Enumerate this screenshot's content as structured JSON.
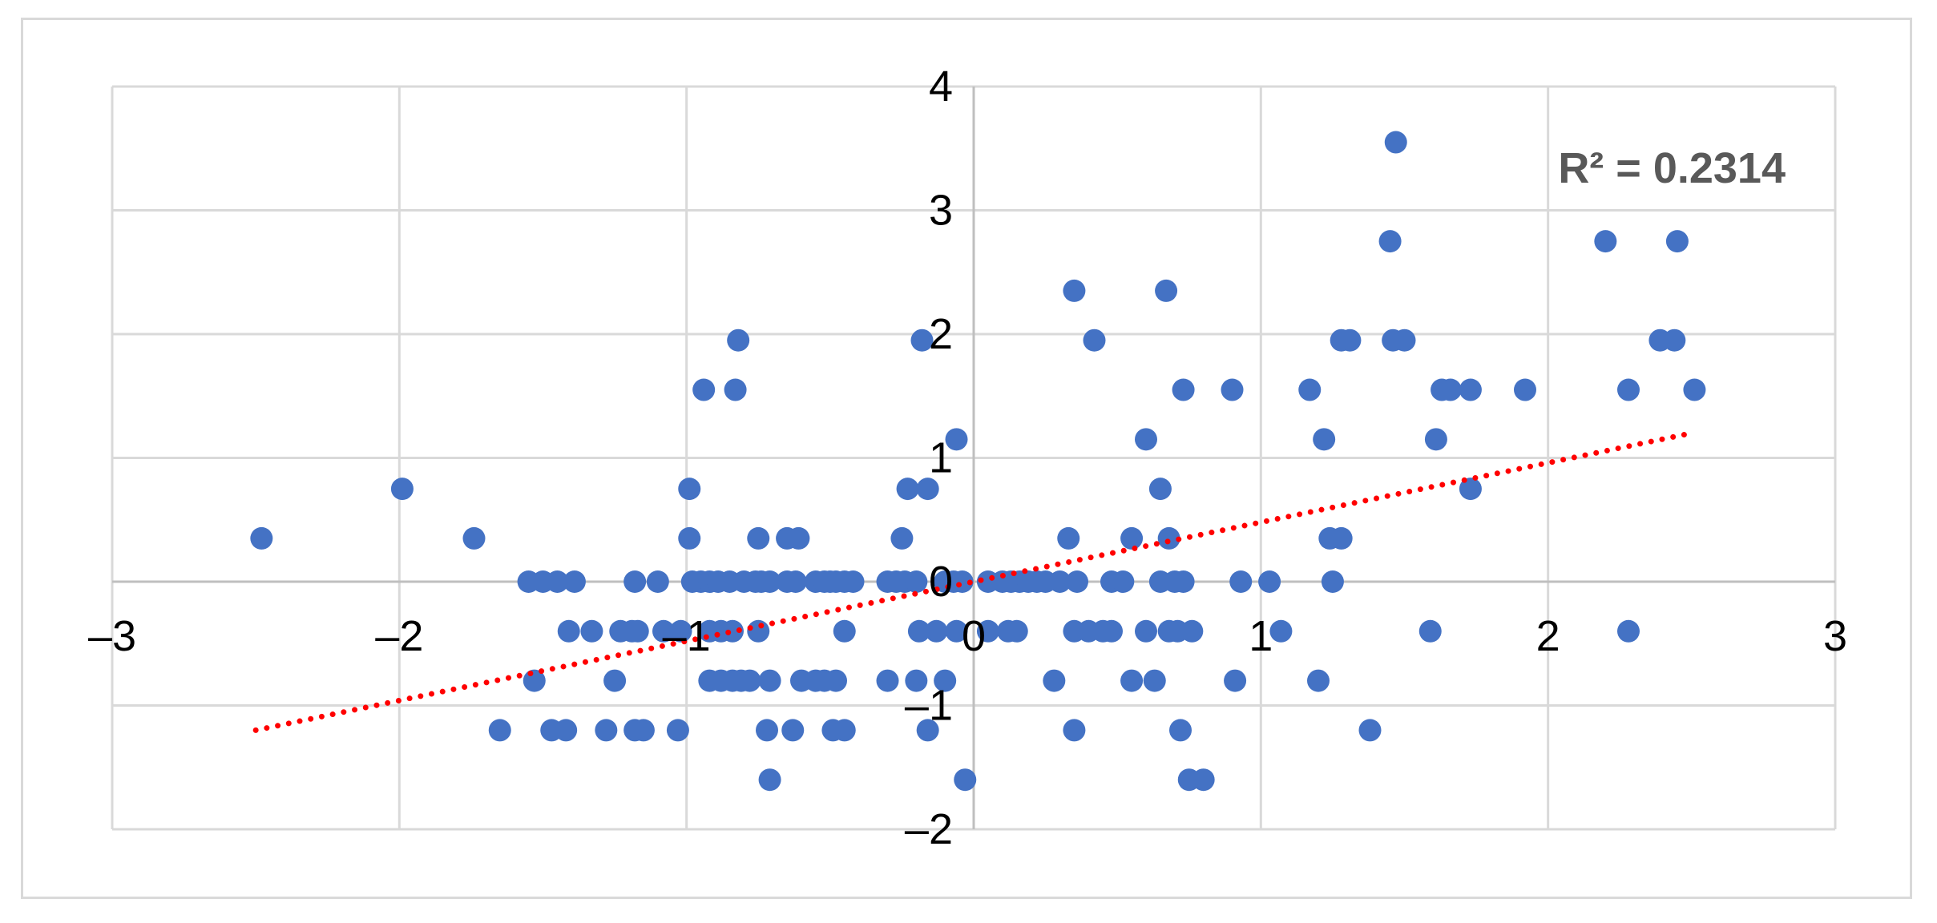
{
  "chart_data": {
    "type": "scatter",
    "title": "",
    "xlabel": "",
    "ylabel": "",
    "xlim": [
      -3,
      3
    ],
    "ylim": [
      -2,
      4
    ],
    "x_ticks": [
      -3,
      -2,
      -1,
      0,
      1,
      2,
      3
    ],
    "y_ticks": [
      -2,
      -1,
      0,
      1,
      2,
      3,
      4
    ],
    "x_tick_labels": [
      "–3",
      "–2",
      "–1",
      "0",
      "1",
      "2",
      "3"
    ],
    "y_tick_labels": [
      "–2",
      "–1",
      "0",
      "1",
      "2",
      "3",
      "4"
    ],
    "grid": true,
    "marker_color": "#4472C4",
    "trendline": {
      "style": "dotted",
      "color": "#FF0000",
      "x": [
        -2.5,
        2.5
      ],
      "y": [
        -1.2,
        1.2
      ],
      "label": "R² = 0.2314"
    },
    "series": [
      {
        "points": [
          [
            -2.48,
            0.35
          ],
          [
            -1.99,
            0.75
          ],
          [
            -1.74,
            0.35
          ],
          [
            -1.55,
            0.0
          ],
          [
            -1.5,
            0.0
          ],
          [
            -1.45,
            0.0
          ],
          [
            -1.39,
            0.0
          ],
          [
            -1.18,
            0.0
          ],
          [
            -1.1,
            0.0
          ],
          [
            -0.98,
            0.0
          ],
          [
            -0.95,
            0.0
          ],
          [
            -0.92,
            0.0
          ],
          [
            -0.89,
            0.0
          ],
          [
            -0.85,
            0.0
          ],
          [
            -0.8,
            0.0
          ],
          [
            -0.76,
            0.0
          ],
          [
            -0.74,
            0.0
          ],
          [
            -0.71,
            0.0
          ],
          [
            -0.65,
            0.0
          ],
          [
            -0.62,
            0.0
          ],
          [
            -0.55,
            0.0
          ],
          [
            -0.52,
            0.0
          ],
          [
            -0.5,
            0.0
          ],
          [
            -0.48,
            0.0
          ],
          [
            -0.45,
            0.0
          ],
          [
            -0.42,
            0.0
          ],
          [
            -0.3,
            0.0
          ],
          [
            -0.27,
            0.0
          ],
          [
            -0.24,
            0.0
          ],
          [
            -0.2,
            0.0
          ],
          [
            -0.1,
            0.0
          ],
          [
            -0.07,
            0.0
          ],
          [
            -0.04,
            0.0
          ],
          [
            0.05,
            0.0
          ],
          [
            0.1,
            0.0
          ],
          [
            0.13,
            0.0
          ],
          [
            0.16,
            0.0
          ],
          [
            0.19,
            0.0
          ],
          [
            0.22,
            0.0
          ],
          [
            0.25,
            0.0
          ],
          [
            0.3,
            0.0
          ],
          [
            0.36,
            0.0
          ],
          [
            0.48,
            0.0
          ],
          [
            0.52,
            0.0
          ],
          [
            0.65,
            0.0
          ],
          [
            0.7,
            0.0
          ],
          [
            0.73,
            0.0
          ],
          [
            0.93,
            0.0
          ],
          [
            1.03,
            0.0
          ],
          [
            1.25,
            0.0
          ],
          [
            -1.41,
            -0.4
          ],
          [
            -1.33,
            -0.4
          ],
          [
            -1.23,
            -0.4
          ],
          [
            -1.19,
            -0.4
          ],
          [
            -1.17,
            -0.4
          ],
          [
            -1.08,
            -0.4
          ],
          [
            -1.02,
            -0.4
          ],
          [
            -0.92,
            -0.4
          ],
          [
            -0.88,
            -0.4
          ],
          [
            -0.84,
            -0.4
          ],
          [
            -0.75,
            -0.4
          ],
          [
            -0.45,
            -0.4
          ],
          [
            -0.19,
            -0.4
          ],
          [
            -0.13,
            -0.4
          ],
          [
            -0.06,
            -0.4
          ],
          [
            0.05,
            -0.4
          ],
          [
            0.12,
            -0.4
          ],
          [
            0.15,
            -0.4
          ],
          [
            0.35,
            -0.4
          ],
          [
            0.4,
            -0.4
          ],
          [
            0.45,
            -0.4
          ],
          [
            0.48,
            -0.4
          ],
          [
            0.6,
            -0.4
          ],
          [
            0.68,
            -0.4
          ],
          [
            0.71,
            -0.4
          ],
          [
            0.76,
            -0.4
          ],
          [
            1.07,
            -0.4
          ],
          [
            1.59,
            -0.4
          ],
          [
            2.28,
            -0.4
          ],
          [
            -1.53,
            -0.8
          ],
          [
            -1.25,
            -0.8
          ],
          [
            -0.92,
            -0.8
          ],
          [
            -0.88,
            -0.8
          ],
          [
            -0.84,
            -0.8
          ],
          [
            -0.81,
            -0.8
          ],
          [
            -0.78,
            -0.8
          ],
          [
            -0.71,
            -0.8
          ],
          [
            -0.6,
            -0.8
          ],
          [
            -0.55,
            -0.8
          ],
          [
            -0.52,
            -0.8
          ],
          [
            -0.48,
            -0.8
          ],
          [
            -0.3,
            -0.8
          ],
          [
            -0.2,
            -0.8
          ],
          [
            -0.1,
            -0.8
          ],
          [
            0.28,
            -0.8
          ],
          [
            0.55,
            -0.8
          ],
          [
            0.63,
            -0.8
          ],
          [
            0.91,
            -0.8
          ],
          [
            1.2,
            -0.8
          ],
          [
            -1.65,
            -1.2
          ],
          [
            -1.47,
            -1.2
          ],
          [
            -1.42,
            -1.2
          ],
          [
            -1.28,
            -1.2
          ],
          [
            -1.18,
            -1.2
          ],
          [
            -1.15,
            -1.2
          ],
          [
            -1.03,
            -1.2
          ],
          [
            -0.72,
            -1.2
          ],
          [
            -0.63,
            -1.2
          ],
          [
            -0.49,
            -1.2
          ],
          [
            -0.45,
            -1.2
          ],
          [
            -0.16,
            -1.2
          ],
          [
            0.35,
            -1.2
          ],
          [
            0.72,
            -1.2
          ],
          [
            1.38,
            -1.2
          ],
          [
            -0.71,
            -1.6
          ],
          [
            -0.03,
            -1.6
          ],
          [
            0.75,
            -1.6
          ],
          [
            0.8,
            -1.6
          ],
          [
            -0.99,
            0.35
          ],
          [
            -0.75,
            0.35
          ],
          [
            -0.65,
            0.35
          ],
          [
            -0.61,
            0.35
          ],
          [
            -0.25,
            0.35
          ],
          [
            0.33,
            0.35
          ],
          [
            0.55,
            0.35
          ],
          [
            0.68,
            0.35
          ],
          [
            1.24,
            0.35
          ],
          [
            1.28,
            0.35
          ],
          [
            -0.99,
            0.75
          ],
          [
            -0.23,
            0.75
          ],
          [
            -0.16,
            0.75
          ],
          [
            0.65,
            0.75
          ],
          [
            1.73,
            0.75
          ],
          [
            -0.06,
            1.15
          ],
          [
            0.6,
            1.15
          ],
          [
            1.22,
            1.15
          ],
          [
            1.61,
            1.15
          ],
          [
            -0.94,
            1.55
          ],
          [
            -0.83,
            1.55
          ],
          [
            0.73,
            1.55
          ],
          [
            0.9,
            1.55
          ],
          [
            1.17,
            1.55
          ],
          [
            1.63,
            1.55
          ],
          [
            1.66,
            1.55
          ],
          [
            1.73,
            1.55
          ],
          [
            1.92,
            1.55
          ],
          [
            2.28,
            1.55
          ],
          [
            2.51,
            1.55
          ],
          [
            -0.82,
            1.95
          ],
          [
            -0.18,
            1.95
          ],
          [
            0.42,
            1.95
          ],
          [
            1.28,
            1.95
          ],
          [
            1.31,
            1.95
          ],
          [
            1.46,
            1.95
          ],
          [
            1.5,
            1.95
          ],
          [
            2.39,
            1.95
          ],
          [
            2.44,
            1.95
          ],
          [
            0.35,
            2.35
          ],
          [
            0.67,
            2.35
          ],
          [
            1.45,
            2.75
          ],
          [
            2.2,
            2.75
          ],
          [
            2.45,
            2.75
          ],
          [
            1.47,
            3.55
          ]
        ]
      }
    ]
  }
}
